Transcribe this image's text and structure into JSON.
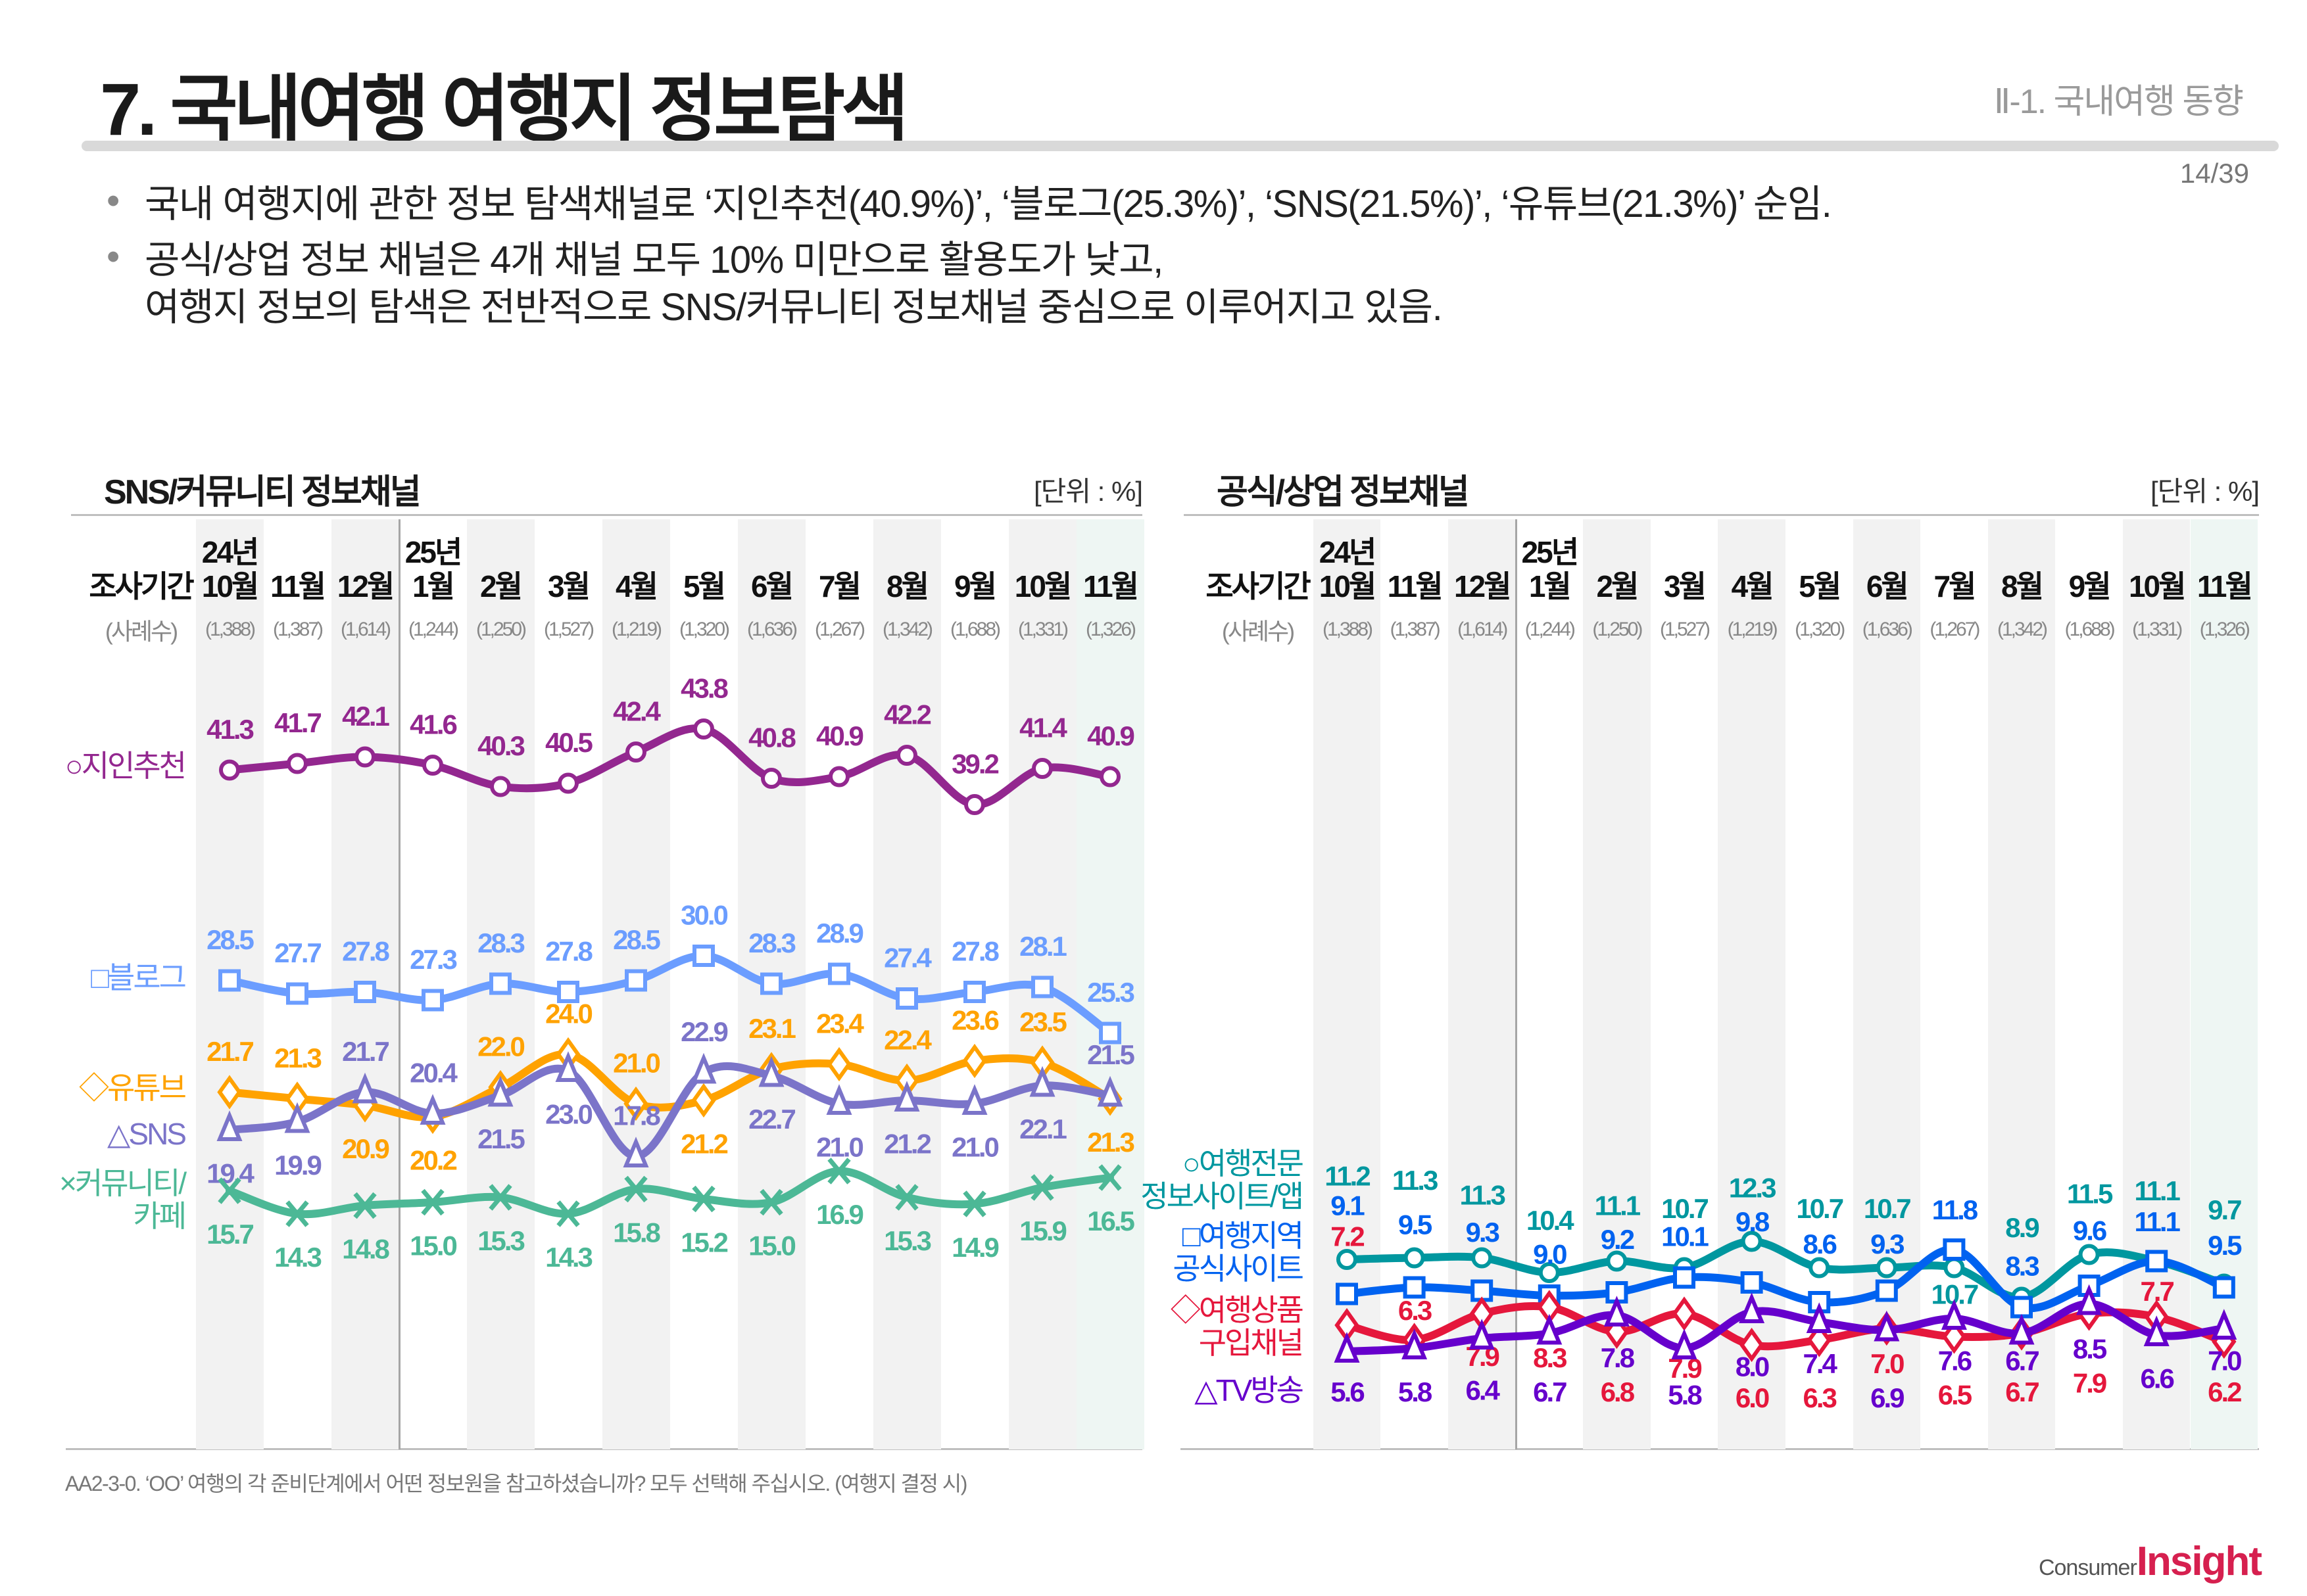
{
  "header": {
    "title": "7. 국내여행 여행지 정보탐색",
    "section": "Ⅱ-1. 국내여행 동향",
    "page": "14/39"
  },
  "bullets": [
    {
      "lines": [
        "국내 여행지에 관한 정보 탐색채널로 ‘지인추천(40.9%)’, ‘블로그(25.3%)’, ‘SNS(21.5%)’, ‘유튜브(21.3%)’ 순임."
      ]
    },
    {
      "lines": [
        "공식/상업 정보 채널은 4개 채널 모두 10% 미만으로 활용도가 낮고,",
        "여행지 정보의 탐색은 전반적으로 SNS/커뮤니티 정보채널 중심으로 이루어지고 있음."
      ]
    }
  ],
  "periods": {
    "label": "조사기간",
    "sample_label": "(사례수)",
    "years": [
      "24년",
      "25년"
    ],
    "months": [
      "10월",
      "11월",
      "12월",
      "1월",
      "2월",
      "3월",
      "4월",
      "5월",
      "6월",
      "7월",
      "8월",
      "9월",
      "10월",
      "11월"
    ],
    "samples": [
      "(1,388)",
      "(1,387)",
      "(1,614)",
      "(1,244)",
      "(1,250)",
      "(1,527)",
      "(1,219)",
      "(1,320)",
      "(1,636)",
      "(1,267)",
      "(1,342)",
      "(1,688)",
      "(1,331)",
      "(1,326)"
    ]
  },
  "chart_data": [
    {
      "type": "line",
      "title": "SNS/커뮤니티 정보채널",
      "unit": "[단위 : %]",
      "categories": [
        "24년 10월",
        "11월",
        "12월",
        "25년 1월",
        "2월",
        "3월",
        "4월",
        "5월",
        "6월",
        "7월",
        "8월",
        "9월",
        "10월",
        "11월"
      ],
      "series": [
        {
          "name": "지인추천",
          "marker": "circle",
          "color": "#93278f",
          "values": [
            41.3,
            41.7,
            42.1,
            41.6,
            40.3,
            40.5,
            42.4,
            43.8,
            40.8,
            40.9,
            42.2,
            39.2,
            41.4,
            40.9
          ]
        },
        {
          "name": "블로그",
          "marker": "square",
          "color": "#6b9dff",
          "values": [
            28.5,
            27.7,
            27.8,
            27.3,
            28.3,
            27.8,
            28.5,
            30.0,
            28.3,
            28.9,
            27.4,
            27.8,
            28.1,
            25.3
          ]
        },
        {
          "name": "유튜브",
          "marker": "diamond",
          "color": "#ffa200",
          "values": [
            21.7,
            21.3,
            20.9,
            20.2,
            22.0,
            24.0,
            21.0,
            21.2,
            23.1,
            23.4,
            22.4,
            23.6,
            23.5,
            21.3
          ]
        },
        {
          "name": "SNS",
          "marker": "triangle",
          "color": "#7b74c9",
          "values": [
            19.4,
            19.9,
            21.7,
            20.4,
            21.5,
            23.0,
            17.8,
            22.9,
            22.7,
            21.0,
            21.2,
            21.0,
            22.1,
            21.5
          ]
        },
        {
          "name": "커뮤니티/\n카페",
          "marker": "x",
          "color": "#4cb896",
          "values": [
            15.7,
            14.3,
            14.8,
            15.0,
            15.3,
            14.3,
            15.8,
            15.2,
            15.0,
            16.9,
            15.3,
            14.9,
            15.9,
            16.5
          ]
        }
      ]
    },
    {
      "type": "line",
      "title": "공식/상업 정보채널",
      "unit": "[단위 : %]",
      "categories": [
        "24년 10월",
        "11월",
        "12월",
        "25년 1월",
        "2월",
        "3월",
        "4월",
        "5월",
        "6월",
        "7월",
        "8월",
        "9월",
        "10월",
        "11월"
      ],
      "series": [
        {
          "name": "여행전문\n정보사이트/앱",
          "marker": "circle",
          "color": "#00979f",
          "values": [
            11.2,
            11.3,
            11.3,
            10.4,
            11.1,
            10.7,
            12.3,
            10.7,
            10.7,
            10.7,
            8.9,
            11.5,
            11.1,
            9.7
          ]
        },
        {
          "name": "여행지역\n공식사이트",
          "marker": "square",
          "color": "#0062f0",
          "values": [
            9.1,
            9.5,
            9.3,
            9.0,
            9.2,
            10.1,
            9.8,
            8.6,
            9.3,
            11.8,
            8.3,
            9.6,
            11.1,
            9.5
          ]
        },
        {
          "name": "여행상품\n구입채널",
          "marker": "diamond",
          "color": "#e5173c",
          "values": [
            7.2,
            6.3,
            7.9,
            8.3,
            6.8,
            7.9,
            6.0,
            6.3,
            7.0,
            6.5,
            6.7,
            7.9,
            7.7,
            6.2
          ]
        },
        {
          "name": "TV방송",
          "marker": "triangle",
          "color": "#6600cc",
          "values": [
            5.6,
            5.8,
            6.4,
            6.7,
            7.8,
            5.8,
            8.0,
            7.4,
            6.9,
            7.6,
            6.7,
            8.5,
            6.6,
            7.0
          ]
        }
      ]
    }
  ],
  "legend_symbols": {
    "circle": "○",
    "square": "□",
    "diamond": "◇",
    "triangle": "△",
    "x": "×"
  },
  "footnote": "AA2-3-0. ‘OO’ 여행의 각 준비단계에서 어떤 정보원을 참고하셨습니까? 모두 선택해 주십시오. (여행지 결정 시)",
  "logo": {
    "small": "Consumer",
    "big": "Insight"
  }
}
